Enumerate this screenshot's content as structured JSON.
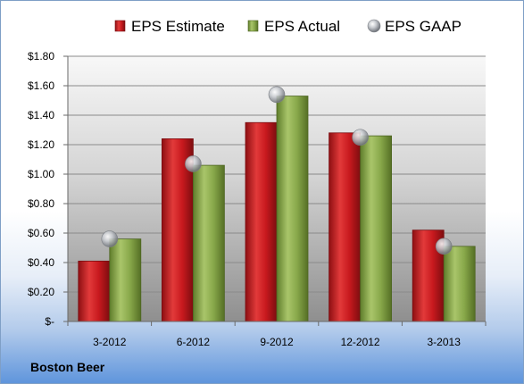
{
  "chart_data": {
    "type": "bar",
    "categories": [
      "3-2012",
      "6-2012",
      "9-2012",
      "12-2012",
      "3-2013"
    ],
    "series": [
      {
        "name": "EPS Estimate",
        "kind": "bar",
        "color": "#c8191e",
        "values": [
          0.41,
          1.24,
          1.35,
          1.28,
          0.62
        ]
      },
      {
        "name": "EPS Actual",
        "kind": "bar",
        "color": "#88a84a",
        "values": [
          0.56,
          1.06,
          1.53,
          1.26,
          0.51
        ]
      },
      {
        "name": "EPS GAAP",
        "kind": "marker",
        "color": "#b9bcc2",
        "values": [
          0.56,
          1.07,
          1.54,
          1.25,
          0.51
        ]
      }
    ],
    "y_ticks": [
      "$-",
      "$0.20",
      "$0.40",
      "$0.60",
      "$0.80",
      "$1.00",
      "$1.20",
      "$1.40",
      "$1.60",
      "$1.80"
    ],
    "ylim": [
      0,
      1.8
    ],
    "ystep": 0.2,
    "legend_position": "top",
    "grid": true
  },
  "company": "Boston Beer"
}
